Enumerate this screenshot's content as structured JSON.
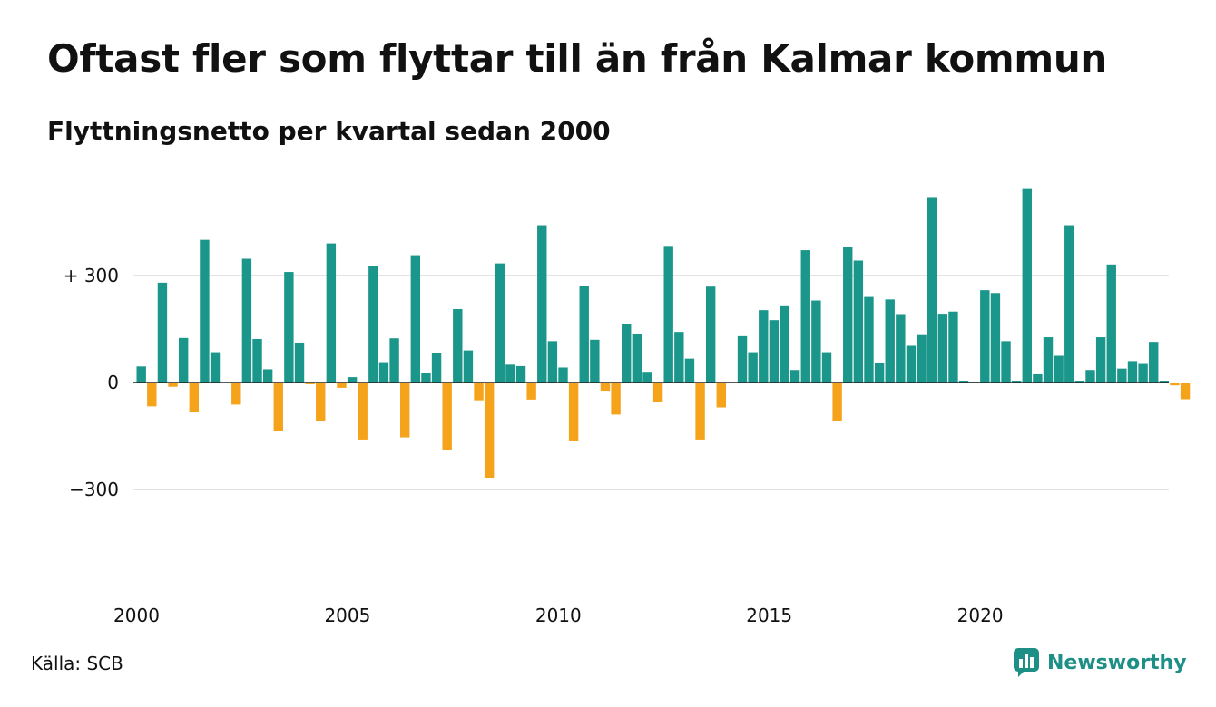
{
  "header": {
    "title": "Oftast fler som flyttar till än från Kalmar kommun",
    "subtitle": "Flyttningsnetto per kvartal sedan 2000"
  },
  "footer": {
    "source": "Källa: SCB",
    "logo_text": "Newsworthy"
  },
  "colors": {
    "positive": "#1b968a",
    "negative": "#f5a31a",
    "grid": "#e3e3e3",
    "zero_line": "#222222",
    "brand": "#1e8f86"
  },
  "chart_data": {
    "type": "bar",
    "title": "Oftast fler som flyttar till än från Kalmar kommun",
    "subtitle": "Flyttningsnetto per kvartal sedan 2000",
    "xlabel": "",
    "ylabel": "",
    "ylim": [
      -450,
      540
    ],
    "y_ticks": [
      {
        "value": 300,
        "label": "+ 300"
      },
      {
        "value": 0,
        "label": "0"
      },
      {
        "value": -300,
        "label": "−300"
      }
    ],
    "x_ticks": [
      "2000",
      "2005",
      "2010",
      "2015",
      "2020"
    ],
    "grid": true,
    "categories": [
      "2000 Q1",
      "2000 Q2",
      "2000 Q3",
      "2000 Q4",
      "2001 Q1",
      "2001 Q2",
      "2001 Q3",
      "2001 Q4",
      "2002 Q1",
      "2002 Q2",
      "2002 Q3",
      "2002 Q4",
      "2003 Q1",
      "2003 Q2",
      "2003 Q3",
      "2003 Q4",
      "2004 Q1",
      "2004 Q2",
      "2004 Q3",
      "2004 Q4",
      "2005 Q1",
      "2005 Q2",
      "2005 Q3",
      "2005 Q4",
      "2006 Q1",
      "2006 Q2",
      "2006 Q3",
      "2006 Q4",
      "2007 Q1",
      "2007 Q2",
      "2007 Q3",
      "2007 Q4",
      "2008 Q1",
      "2008 Q2",
      "2008 Q3",
      "2008 Q4",
      "2009 Q1",
      "2009 Q2",
      "2009 Q3",
      "2009 Q4",
      "2010 Q1",
      "2010 Q2",
      "2010 Q3",
      "2010 Q4",
      "2011 Q1",
      "2011 Q2",
      "2011 Q3",
      "2011 Q4",
      "2012 Q1",
      "2012 Q2",
      "2012 Q3",
      "2012 Q4",
      "2013 Q1",
      "2013 Q2",
      "2013 Q3",
      "2013 Q4",
      "2014 Q1",
      "2014 Q2",
      "2014 Q3",
      "2014 Q4",
      "2015 Q1",
      "2015 Q2",
      "2015 Q3",
      "2015 Q4",
      "2016 Q1",
      "2016 Q2",
      "2016 Q3",
      "2016 Q4",
      "2017 Q1",
      "2017 Q2",
      "2017 Q3",
      "2017 Q4",
      "2018 Q1",
      "2018 Q2",
      "2018 Q3",
      "2018 Q4",
      "2019 Q1",
      "2019 Q2",
      "2019 Q3",
      "2019 Q4",
      "2020 Q1",
      "2020 Q2",
      "2020 Q3",
      "2020 Q4",
      "2021 Q1",
      "2021 Q2",
      "2021 Q3",
      "2021 Q4",
      "2022 Q1",
      "2022 Q2",
      "2022 Q3",
      "2022 Q4",
      "2023 Q1",
      "2023 Q2",
      "2023 Q3",
      "2023 Q4",
      "2024 Q1",
      "2024 Q2",
      "2024 Q3",
      "2024 Q4"
    ],
    "values": [
      45,
      -67,
      280,
      -12,
      125,
      -84,
      400,
      85,
      -2,
      -62,
      347,
      122,
      37,
      -137,
      310,
      112,
      -5,
      -107,
      390,
      -15,
      15,
      -160,
      327,
      57,
      124,
      -154,
      357,
      28,
      82,
      -189,
      206,
      90,
      -50,
      -267,
      334,
      50,
      46,
      -48,
      441,
      116,
      42,
      -165,
      270,
      120,
      -23,
      -90,
      163,
      136,
      30,
      -55,
      383,
      142,
      67,
      -160,
      269,
      -70,
      -2,
      130,
      85,
      203,
      175,
      214,
      35,
      371,
      230,
      85,
      -108,
      380,
      342,
      240,
      55,
      233,
      192,
      103,
      133,
      520,
      193,
      199,
      5,
      2,
      259,
      251,
      116,
      5,
      545,
      23,
      127,
      75,
      441,
      5,
      35,
      127,
      331,
      39,
      60,
      52,
      114,
      5,
      -8,
      -47
    ]
  }
}
